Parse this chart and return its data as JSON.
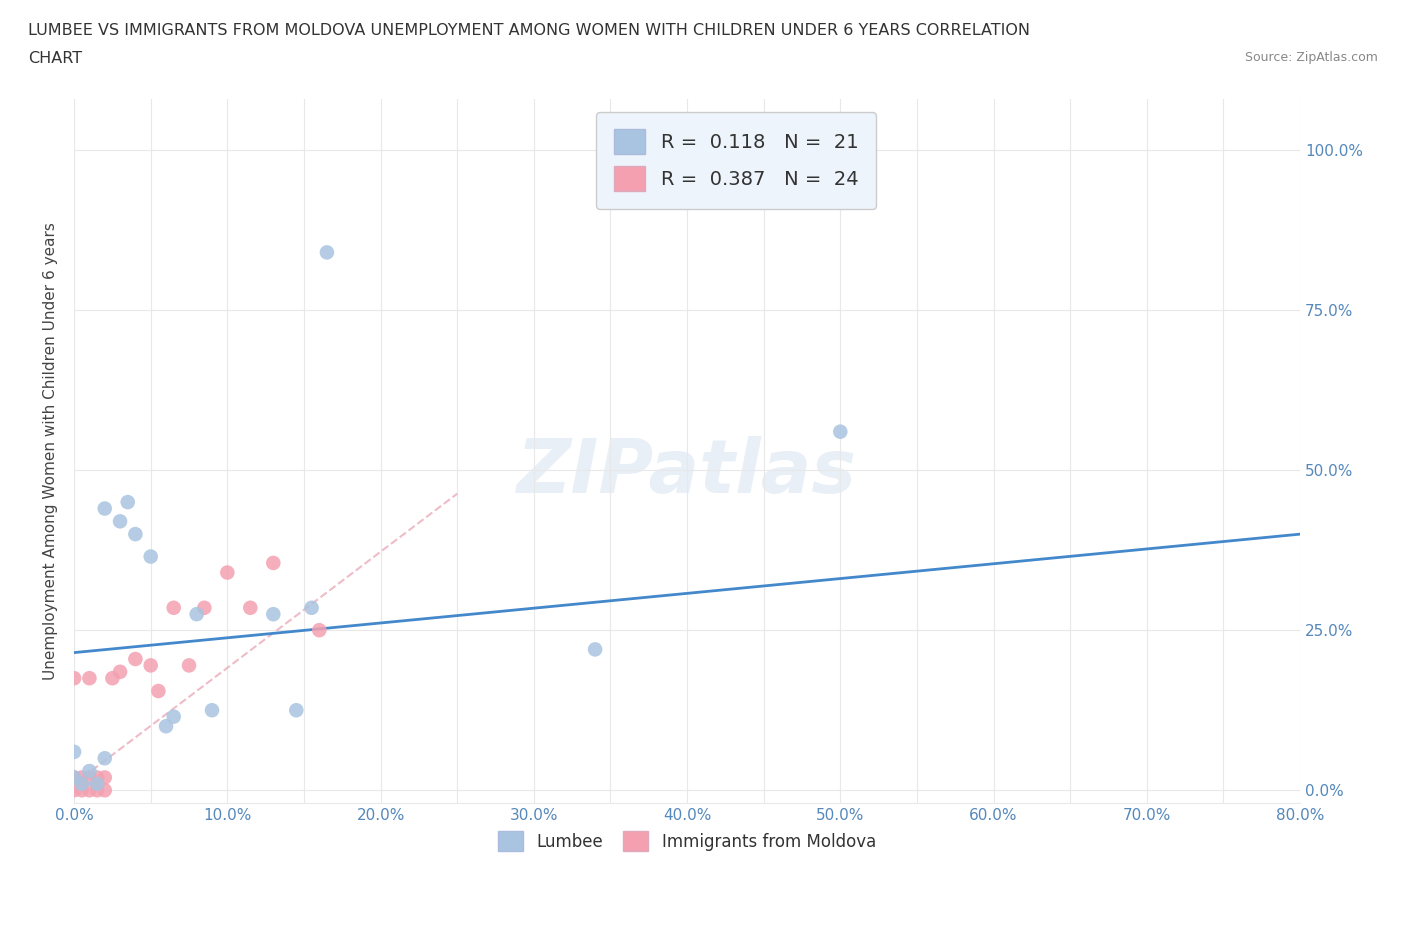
{
  "title_line1": "LUMBEE VS IMMIGRANTS FROM MOLDOVA UNEMPLOYMENT AMONG WOMEN WITH CHILDREN UNDER 6 YEARS CORRELATION",
  "title_line2": "CHART",
  "source": "Source: ZipAtlas.com",
  "xlabel_ticks": [
    "0.0%",
    "",
    "10.0%",
    "",
    "20.0%",
    "",
    "30.0%",
    "",
    "40.0%",
    "",
    "50.0%",
    "",
    "60.0%",
    "",
    "70.0%",
    "",
    "80.0%"
  ],
  "ylabel_label": "Unemployment Among Women with Children Under 6 years",
  "xlim": [
    0,
    0.8
  ],
  "ylim": [
    -0.02,
    1.08
  ],
  "lumbee_color": "#a8c4e0",
  "moldova_color": "#f4a0b0",
  "lumbee_line_color": "#4488cc",
  "moldova_line_color": "#e8a0b0",
  "lumbee_R": "0.118",
  "lumbee_N": "21",
  "moldova_R": "0.387",
  "moldova_N": "24",
  "lumbee_scatter_x": [
    0.0,
    0.0,
    0.005,
    0.01,
    0.015,
    0.02,
    0.02,
    0.03,
    0.035,
    0.04,
    0.05,
    0.06,
    0.065,
    0.08,
    0.09,
    0.13,
    0.145,
    0.155,
    0.165,
    0.34,
    0.5
  ],
  "lumbee_scatter_y": [
    0.02,
    0.06,
    0.01,
    0.03,
    0.01,
    0.05,
    0.44,
    0.42,
    0.45,
    0.4,
    0.365,
    0.1,
    0.115,
    0.275,
    0.125,
    0.275,
    0.125,
    0.285,
    0.84,
    0.22,
    0.56
  ],
  "moldova_scatter_x": [
    0.0,
    0.0,
    0.0,
    0.005,
    0.005,
    0.01,
    0.01,
    0.01,
    0.015,
    0.015,
    0.02,
    0.02,
    0.025,
    0.03,
    0.04,
    0.05,
    0.055,
    0.065,
    0.075,
    0.085,
    0.1,
    0.115,
    0.13,
    0.16
  ],
  "moldova_scatter_y": [
    0.0,
    0.02,
    0.175,
    0.0,
    0.02,
    0.0,
    0.02,
    0.175,
    0.0,
    0.02,
    0.0,
    0.02,
    0.175,
    0.185,
    0.205,
    0.195,
    0.155,
    0.285,
    0.195,
    0.285,
    0.34,
    0.285,
    0.355,
    0.25
  ],
  "lumbee_line_x": [
    0.0,
    0.8
  ],
  "lumbee_line_y": [
    0.215,
    0.4
  ],
  "moldova_line_x": [
    0.0,
    0.16
  ],
  "moldova_line_y": [
    0.01,
    0.3
  ],
  "watermark_text": "ZIPatlas",
  "background_color": "#ffffff",
  "grid_color": "#e8e8e8",
  "legend_box_color": "#eef4fb",
  "right_ytick_labels": [
    "0.0%",
    "25.0%",
    "50.0%",
    "75.0%",
    "100.0%"
  ],
  "right_ytick_vals": [
    0.0,
    0.25,
    0.5,
    0.75,
    1.0
  ]
}
